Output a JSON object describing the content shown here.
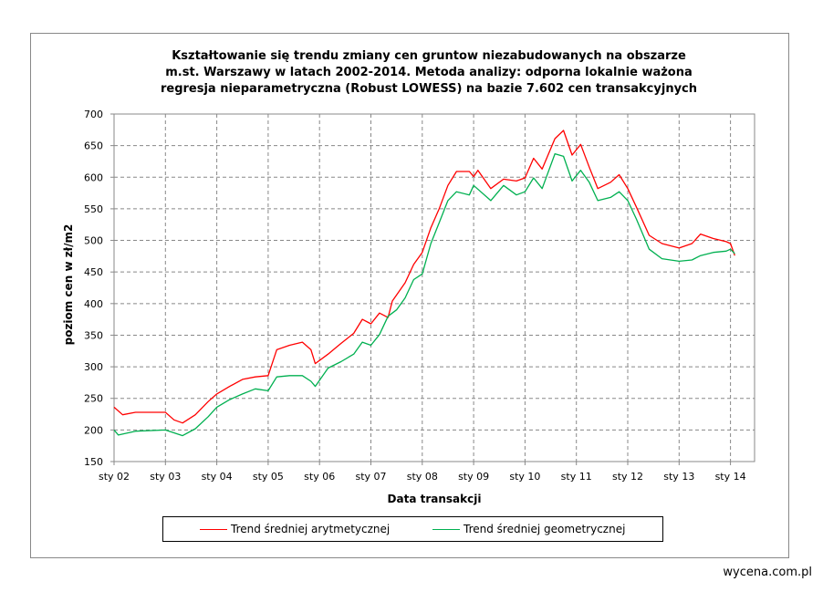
{
  "chart_data": {
    "type": "line",
    "title": [
      "Kształtowanie  się trendu zmiany  cen gruntow niezabudowanych  na obszarze",
      "m.st.  Warszawy  w latach  2002-2014. Metoda analizy:  odporna lokalnie  ważona",
      "regresja nieparametryczna  (Robust LOWESS) na bazie 7.602 cen transakcyjnych"
    ],
    "xlabel": "Data transakcji",
    "ylabel": "poziom cen w zł/m2",
    "ylim": [
      150,
      700
    ],
    "yticks": [
      150,
      200,
      250,
      300,
      350,
      400,
      450,
      500,
      550,
      600,
      650,
      700
    ],
    "xticks": [
      {
        "date": "2002-01",
        "label": "sty 02"
      },
      {
        "date": "2003-01",
        "label": "sty 03"
      },
      {
        "date": "2004-01",
        "label": "sty 04"
      },
      {
        "date": "2005-01",
        "label": "sty 05"
      },
      {
        "date": "2006-01",
        "label": "sty 06"
      },
      {
        "date": "2007-01",
        "label": "sty 07"
      },
      {
        "date": "2008-01",
        "label": "sty 08"
      },
      {
        "date": "2009-01",
        "label": "sty 09"
      },
      {
        "date": "2010-01",
        "label": "sty 10"
      },
      {
        "date": "2011-01",
        "label": "sty 11"
      },
      {
        "date": "2012-01",
        "label": "sty 12"
      },
      {
        "date": "2013-01",
        "label": "sty 13"
      },
      {
        "date": "2014-01",
        "label": "sty 14"
      }
    ],
    "xlim": [
      "2002-01",
      "2014-06"
    ],
    "grid": true,
    "legend_placement": "bottom",
    "series": [
      {
        "name": "Trend średniej arytmetycznej",
        "color": "#ff0000",
        "points": [
          [
            "2002-01",
            236
          ],
          [
            "2002-03",
            224
          ],
          [
            "2002-06",
            228
          ],
          [
            "2003-01",
            228
          ],
          [
            "2003-03",
            216
          ],
          [
            "2003-05",
            211
          ],
          [
            "2003-08",
            224
          ],
          [
            "2003-11",
            245
          ],
          [
            "2004-01",
            257
          ],
          [
            "2004-04",
            269
          ],
          [
            "2004-07",
            280
          ],
          [
            "2004-10",
            284
          ],
          [
            "2005-01",
            286
          ],
          [
            "2005-03",
            327
          ],
          [
            "2005-06",
            334
          ],
          [
            "2005-09",
            339
          ],
          [
            "2005-11",
            327
          ],
          [
            "2005-12",
            305
          ],
          [
            "2006-03",
            320
          ],
          [
            "2006-06",
            337
          ],
          [
            "2006-09",
            353
          ],
          [
            "2006-11",
            375
          ],
          [
            "2007-01",
            368
          ],
          [
            "2007-03",
            385
          ],
          [
            "2007-05",
            378
          ],
          [
            "2007-06",
            404
          ],
          [
            "2007-09",
            433
          ],
          [
            "2007-11",
            462
          ],
          [
            "2008-01",
            481
          ],
          [
            "2008-03",
            520
          ],
          [
            "2008-05",
            551
          ],
          [
            "2008-07",
            587
          ],
          [
            "2008-09",
            609
          ],
          [
            "2008-12",
            609
          ],
          [
            "2009-01",
            601
          ],
          [
            "2009-02",
            611
          ],
          [
            "2009-05",
            582
          ],
          [
            "2009-08",
            597
          ],
          [
            "2009-11",
            594
          ],
          [
            "2010-01",
            599
          ],
          [
            "2010-03",
            630
          ],
          [
            "2010-05",
            613
          ],
          [
            "2010-08",
            661
          ],
          [
            "2010-10",
            674
          ],
          [
            "2010-12",
            635
          ],
          [
            "2011-02",
            652
          ],
          [
            "2011-04",
            616
          ],
          [
            "2011-06",
            582
          ],
          [
            "2011-09",
            592
          ],
          [
            "2011-11",
            604
          ],
          [
            "2012-01",
            582
          ],
          [
            "2012-03",
            553
          ],
          [
            "2012-06",
            508
          ],
          [
            "2012-09",
            495
          ],
          [
            "2013-01",
            488
          ],
          [
            "2013-04",
            495
          ],
          [
            "2013-06",
            510
          ],
          [
            "2013-09",
            503
          ],
          [
            "2013-12",
            498
          ],
          [
            "2014-01",
            495
          ],
          [
            "2014-02",
            476
          ]
        ]
      },
      {
        "name": "Trend średniej geometrycznej",
        "color": "#00b050",
        "points": [
          [
            "2002-01",
            200
          ],
          [
            "2002-02",
            192
          ],
          [
            "2002-06",
            198
          ],
          [
            "2003-01",
            200
          ],
          [
            "2003-05",
            191
          ],
          [
            "2003-08",
            202
          ],
          [
            "2003-11",
            221
          ],
          [
            "2004-01",
            236
          ],
          [
            "2004-04",
            248
          ],
          [
            "2004-07",
            257
          ],
          [
            "2004-10",
            265
          ],
          [
            "2005-01",
            262
          ],
          [
            "2005-03",
            284
          ],
          [
            "2005-06",
            286
          ],
          [
            "2005-09",
            286
          ],
          [
            "2005-11",
            277
          ],
          [
            "2005-12",
            269
          ],
          [
            "2006-03",
            298
          ],
          [
            "2006-06",
            308
          ],
          [
            "2006-09",
            320
          ],
          [
            "2006-11",
            339
          ],
          [
            "2007-01",
            334
          ],
          [
            "2007-03",
            351
          ],
          [
            "2007-05",
            380
          ],
          [
            "2007-07",
            390
          ],
          [
            "2007-09",
            409
          ],
          [
            "2007-11",
            438
          ],
          [
            "2008-01",
            447
          ],
          [
            "2008-03",
            495
          ],
          [
            "2008-05",
            529
          ],
          [
            "2008-07",
            563
          ],
          [
            "2008-09",
            577
          ],
          [
            "2008-12",
            572
          ],
          [
            "2009-01",
            587
          ],
          [
            "2009-05",
            563
          ],
          [
            "2009-08",
            587
          ],
          [
            "2009-11",
            572
          ],
          [
            "2010-01",
            577
          ],
          [
            "2010-03",
            599
          ],
          [
            "2010-05",
            582
          ],
          [
            "2010-08",
            637
          ],
          [
            "2010-10",
            633
          ],
          [
            "2010-12",
            594
          ],
          [
            "2011-02",
            611
          ],
          [
            "2011-04",
            592
          ],
          [
            "2011-06",
            563
          ],
          [
            "2011-09",
            568
          ],
          [
            "2011-11",
            577
          ],
          [
            "2012-01",
            563
          ],
          [
            "2012-03",
            534
          ],
          [
            "2012-06",
            486
          ],
          [
            "2012-09",
            471
          ],
          [
            "2013-01",
            467
          ],
          [
            "2013-04",
            469
          ],
          [
            "2013-06",
            476
          ],
          [
            "2013-09",
            481
          ],
          [
            "2013-12",
            483
          ],
          [
            "2014-01",
            486
          ],
          [
            "2014-02",
            479
          ]
        ]
      }
    ]
  },
  "brand": "wycena.com.pl"
}
